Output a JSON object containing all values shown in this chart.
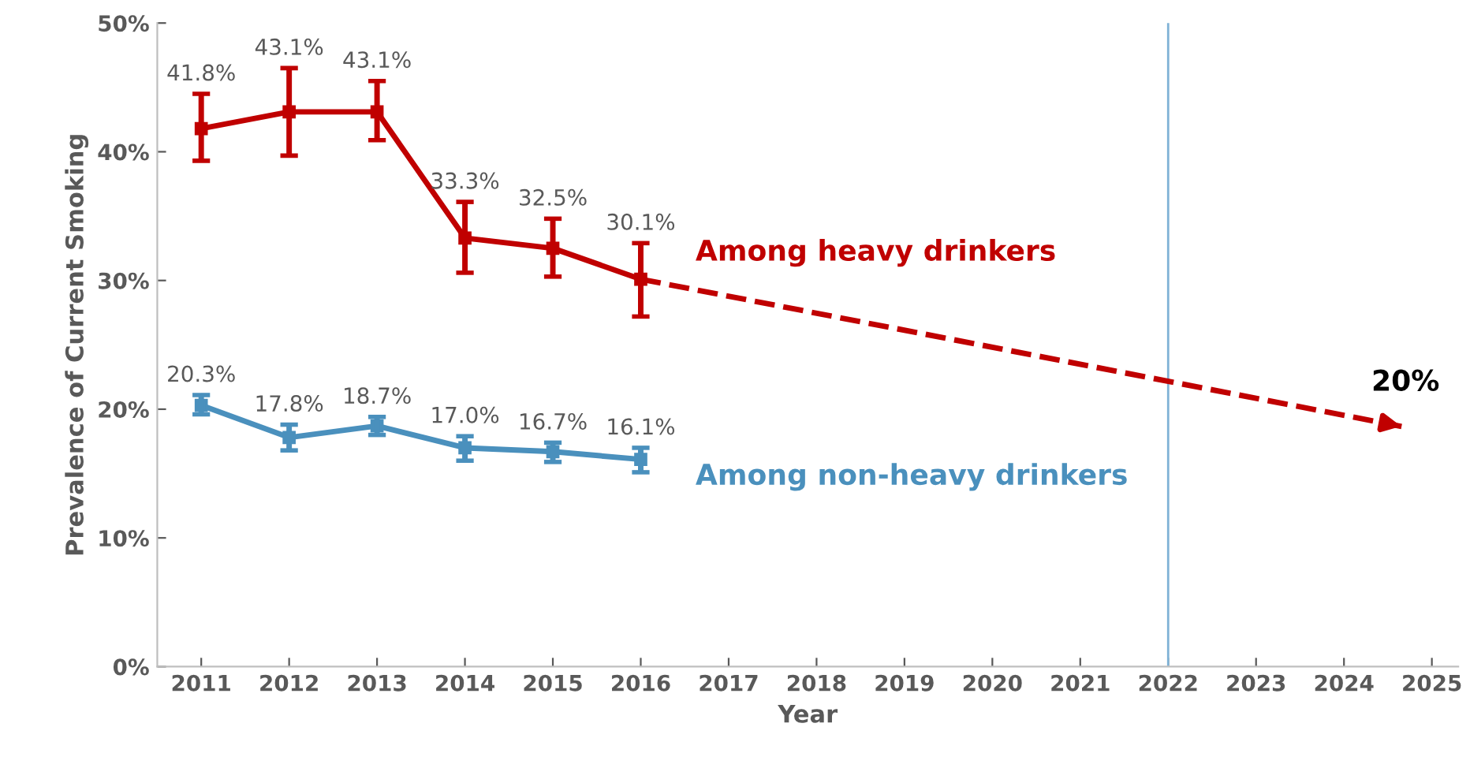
{
  "chart_data": {
    "type": "line",
    "xlabel": "Year",
    "ylabel": "Prevalence of Current Smoking",
    "xlim": [
      2010.5,
      2025.3
    ],
    "xticks": [
      2011,
      2012,
      2013,
      2014,
      2015,
      2016,
      2017,
      2018,
      2019,
      2020,
      2021,
      2022,
      2023,
      2024,
      2025
    ],
    "ylim": [
      0,
      50
    ],
    "yticks": [
      {
        "value": 0,
        "label": "0%"
      },
      {
        "value": 10,
        "label": "10%"
      },
      {
        "value": 20,
        "label": "20%"
      },
      {
        "value": 30,
        "label": "30%"
      },
      {
        "value": 40,
        "label": "40%"
      },
      {
        "value": 50,
        "label": "50%"
      }
    ],
    "grid": false,
    "legend": false,
    "marker": "square",
    "series": [
      {
        "name": "Among heavy drinkers",
        "color": "#c00000",
        "x": [
          2011,
          2012,
          2013,
          2014,
          2015,
          2016
        ],
        "values": [
          41.8,
          43.1,
          43.1,
          33.3,
          32.5,
          30.1
        ],
        "value_labels": [
          "41.8%",
          "43.1%",
          "43.1%",
          "33.3%",
          "32.5%",
          "30.1%"
        ],
        "errors": [
          [
            39.3,
            44.5
          ],
          [
            39.7,
            46.5
          ],
          [
            40.9,
            45.5
          ],
          [
            30.6,
            36.1
          ],
          [
            30.3,
            34.8
          ],
          [
            27.2,
            32.9
          ]
        ]
      },
      {
        "name": "Among non-heavy drinkers",
        "color": "#4a90bd",
        "x": [
          2011,
          2012,
          2013,
          2014,
          2015,
          2016
        ],
        "values": [
          20.3,
          17.8,
          18.7,
          17.0,
          16.7,
          16.1
        ],
        "value_labels": [
          "20.3%",
          "17.8%",
          "18.7%",
          "17.0%",
          "16.7%",
          "16.1%"
        ],
        "errors": [
          [
            19.6,
            21.1
          ],
          [
            16.8,
            18.8
          ],
          [
            18.0,
            19.4
          ],
          [
            16.0,
            17.9
          ],
          [
            15.9,
            17.4
          ],
          [
            15.1,
            17.0
          ]
        ]
      },
      {
        "type": "line",
        "color": "#c00000",
        "x": [
          2016,
          2024.7
        ],
        "values": [
          30.1,
          18.6
        ],
        "line_style": "dashed",
        "marker": "none"
      }
    ],
    "ref_lines": [
      {
        "axis": "x",
        "value": 2022,
        "color": "#7fb2d6"
      }
    ],
    "annotations": [
      "20%"
    ]
  }
}
